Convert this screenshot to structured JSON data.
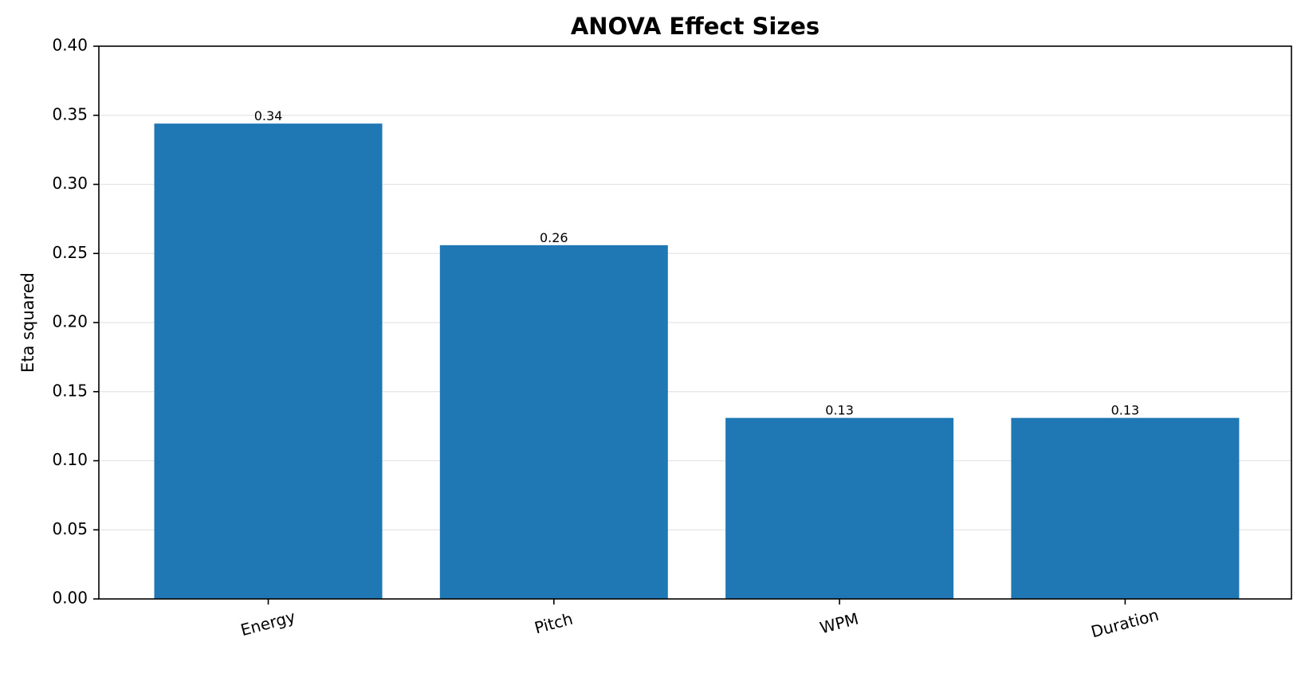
{
  "chart_data": {
    "type": "bar",
    "title": "ANOVA Effect Sizes",
    "xlabel": "",
    "ylabel": "Eta squared",
    "categories": [
      "Energy",
      "Pitch",
      "WPM",
      "Duration"
    ],
    "values": [
      0.344,
      0.256,
      0.131,
      0.131
    ],
    "data_labels": [
      "0.34",
      "0.26",
      "0.13",
      "0.13"
    ],
    "ylim": [
      0,
      0.4
    ],
    "y_ticks": [
      0.0,
      0.05,
      0.1,
      0.15,
      0.2,
      0.25,
      0.3,
      0.35,
      0.4
    ],
    "y_tick_labels": [
      "0.00",
      "0.05",
      "0.10",
      "0.15",
      "0.20",
      "0.25",
      "0.30",
      "0.35",
      "0.40"
    ],
    "grid": "y",
    "bar_color": "#1f77b4",
    "grid_color": "#e5e5e5"
  }
}
